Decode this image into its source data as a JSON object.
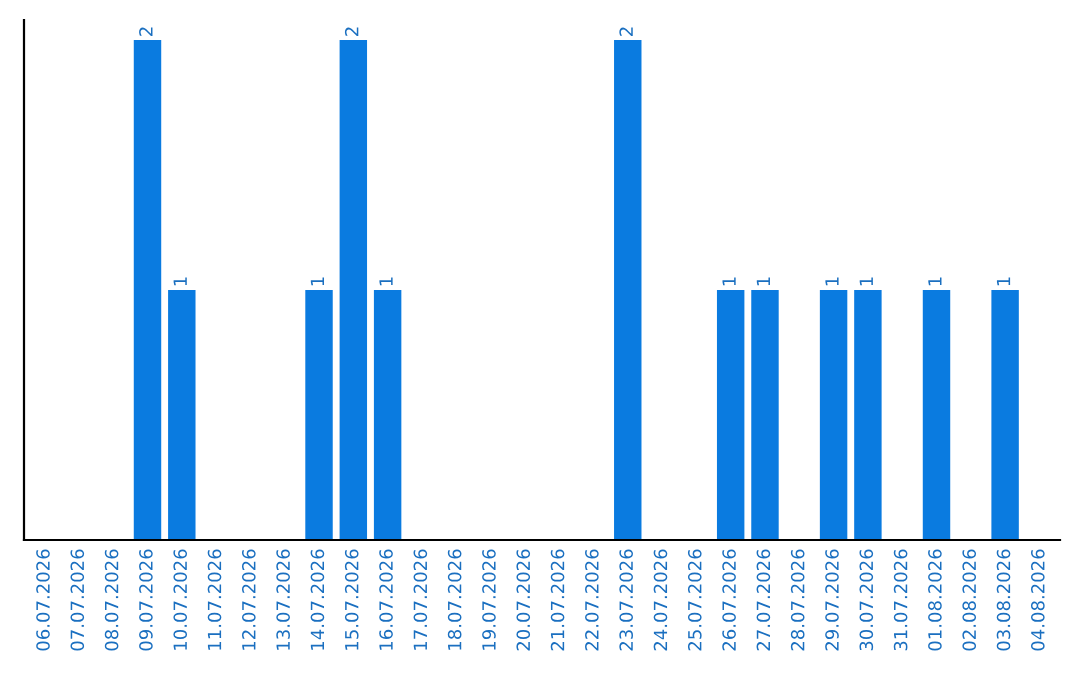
{
  "chart_data": {
    "type": "bar",
    "categories": [
      "06.07.2026",
      "07.07.2026",
      "08.07.2026",
      "09.07.2026",
      "10.07.2026",
      "11.07.2026",
      "12.07.2026",
      "13.07.2026",
      "14.07.2026",
      "15.07.2026",
      "16.07.2026",
      "17.07.2026",
      "18.07.2026",
      "19.07.2026",
      "20.07.2026",
      "21.07.2026",
      "22.07.2026",
      "23.07.2026",
      "24.07.2026",
      "25.07.2026",
      "26.07.2026",
      "27.07.2026",
      "28.07.2026",
      "29.07.2026",
      "30.07.2026",
      "31.07.2026",
      "01.08.2026",
      "02.08.2026",
      "03.08.2026",
      "04.08.2026"
    ],
    "values": [
      0,
      0,
      0,
      2,
      1,
      0,
      0,
      0,
      1,
      2,
      1,
      0,
      0,
      0,
      0,
      0,
      0,
      2,
      0,
      0,
      1,
      1,
      0,
      1,
      1,
      0,
      1,
      0,
      1,
      0
    ],
    "value_labels": [
      null,
      null,
      null,
      "2",
      "1",
      null,
      null,
      null,
      "1",
      "2",
      "1",
      null,
      null,
      null,
      null,
      null,
      null,
      "2",
      null,
      null,
      "1",
      "1",
      null,
      "1",
      "1",
      null,
      "1",
      null,
      "1",
      null
    ],
    "color": "#0a7be0",
    "ylim": [
      0,
      2.08
    ],
    "tick_labels": "x",
    "grid": false,
    "legend": false
  }
}
